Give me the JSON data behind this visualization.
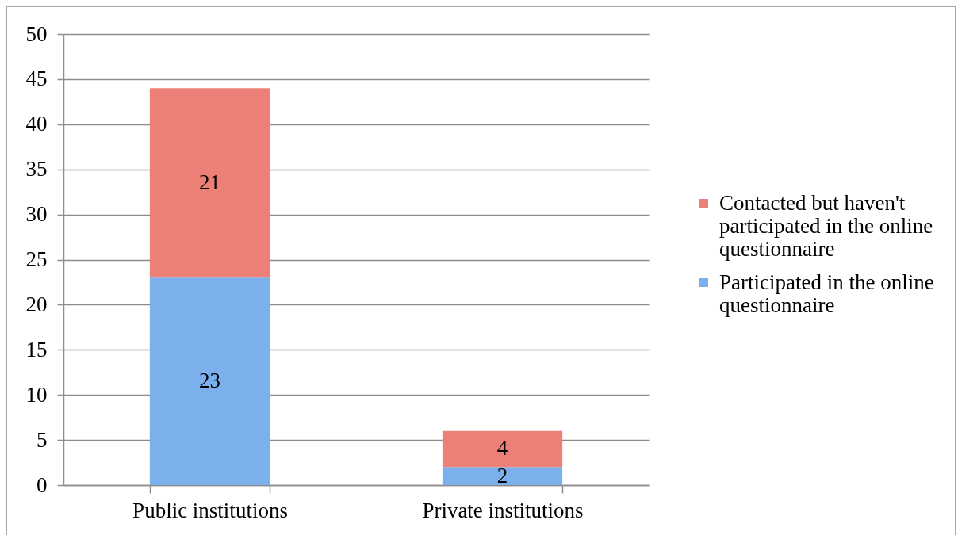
{
  "chart_data": {
    "type": "bar",
    "stacked": true,
    "categories": [
      "Public institutions",
      "Private institutions"
    ],
    "series": [
      {
        "name": "Participated in the online questionnaire",
        "color": "#7cb0ec",
        "values": [
          23,
          2
        ]
      },
      {
        "name": "Contacted but haven't participated in the online questionnaire",
        "color": "#ec8077",
        "values": [
          21,
          4
        ]
      }
    ],
    "ylim": [
      0,
      50
    ],
    "yticks": [
      0,
      5,
      10,
      15,
      20,
      25,
      30,
      35,
      40,
      45,
      50
    ],
    "grid": "y",
    "legend": "right",
    "data_labels": true
  }
}
